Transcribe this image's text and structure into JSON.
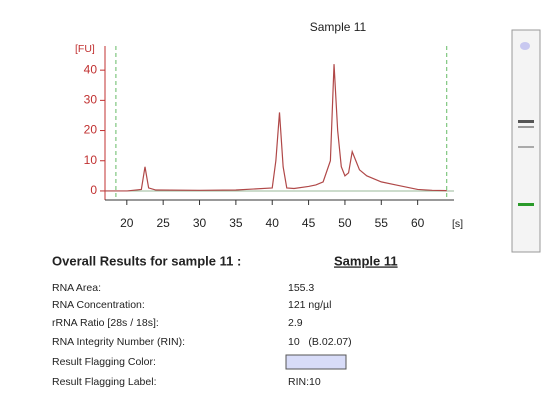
{
  "chart_data": {
    "type": "line",
    "title": "Sample 11",
    "y_label": "[FU]",
    "x_label": "[s]",
    "x": [
      17,
      20,
      22,
      22.5,
      23,
      24,
      30,
      35,
      40,
      40.5,
      41,
      41.5,
      42,
      43,
      45,
      46,
      47,
      48,
      48.5,
      49,
      49.5,
      50,
      50.5,
      51,
      51.5,
      52,
      53,
      55,
      57,
      60,
      62,
      64
    ],
    "series": [
      {
        "color": "#b04848",
        "values": [
          0,
          0,
          0.5,
          8,
          1,
          0.3,
          0.2,
          0.3,
          1,
          10,
          26,
          8,
          1,
          0.8,
          1.5,
          2,
          3,
          10,
          42,
          20,
          8,
          5,
          6,
          13,
          10,
          7,
          5,
          3,
          2,
          0.5,
          0.2,
          0.1
        ]
      }
    ],
    "xlim": [
      17,
      65
    ],
    "xticks": [
      20,
      25,
      30,
      35,
      40,
      45,
      50,
      55,
      60
    ],
    "ylim": [
      -3,
      48
    ],
    "yticks": [
      0,
      10,
      20,
      30,
      40
    ],
    "markers": [
      18.5,
      64
    ],
    "marker_color": "#66bb66",
    "axis_color": "#c03030"
  },
  "results": {
    "heading": "Overall Results for sample 11  :",
    "sample": "Sample 11",
    "rows": [
      [
        "RNA Area:",
        "155.3"
      ],
      [
        "RNA Concentration:",
        "121 ng/µl"
      ],
      [
        "rRNA Ratio [28s / 18s]:",
        "2.9"
      ],
      [
        "RNA Integrity Number (RIN):",
        "10   (B.02.07)"
      ],
      [
        "Result Flagging Color:",
        null
      ],
      [
        "Result Flagging Label:",
        "RIN:10"
      ]
    ]
  }
}
